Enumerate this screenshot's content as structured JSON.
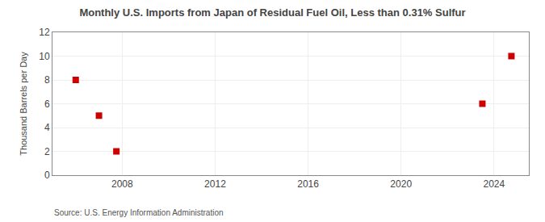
{
  "chart_data": {
    "type": "scatter",
    "title": "Monthly U.S. Imports from Japan of Residual Fuel Oil, Less than 0.31% Sulfur",
    "ylabel": "Thousand Barrels per Day",
    "annotations": [
      "Source: U.S. Energy Information Administration"
    ],
    "x": [
      2006.0,
      2007.0,
      2007.75,
      2023.5,
      2024.75
    ],
    "values": [
      8,
      5,
      2,
      6,
      10
    ],
    "color": "#cc0000",
    "marker": "square",
    "xlim": [
      2005.0,
      2025.5
    ],
    "xticks": [
      2008,
      2012,
      2016,
      2020,
      2024
    ],
    "ylim": [
      0,
      12
    ],
    "yticks": [
      0,
      2,
      4,
      6,
      8,
      10,
      12
    ],
    "grid": true
  }
}
